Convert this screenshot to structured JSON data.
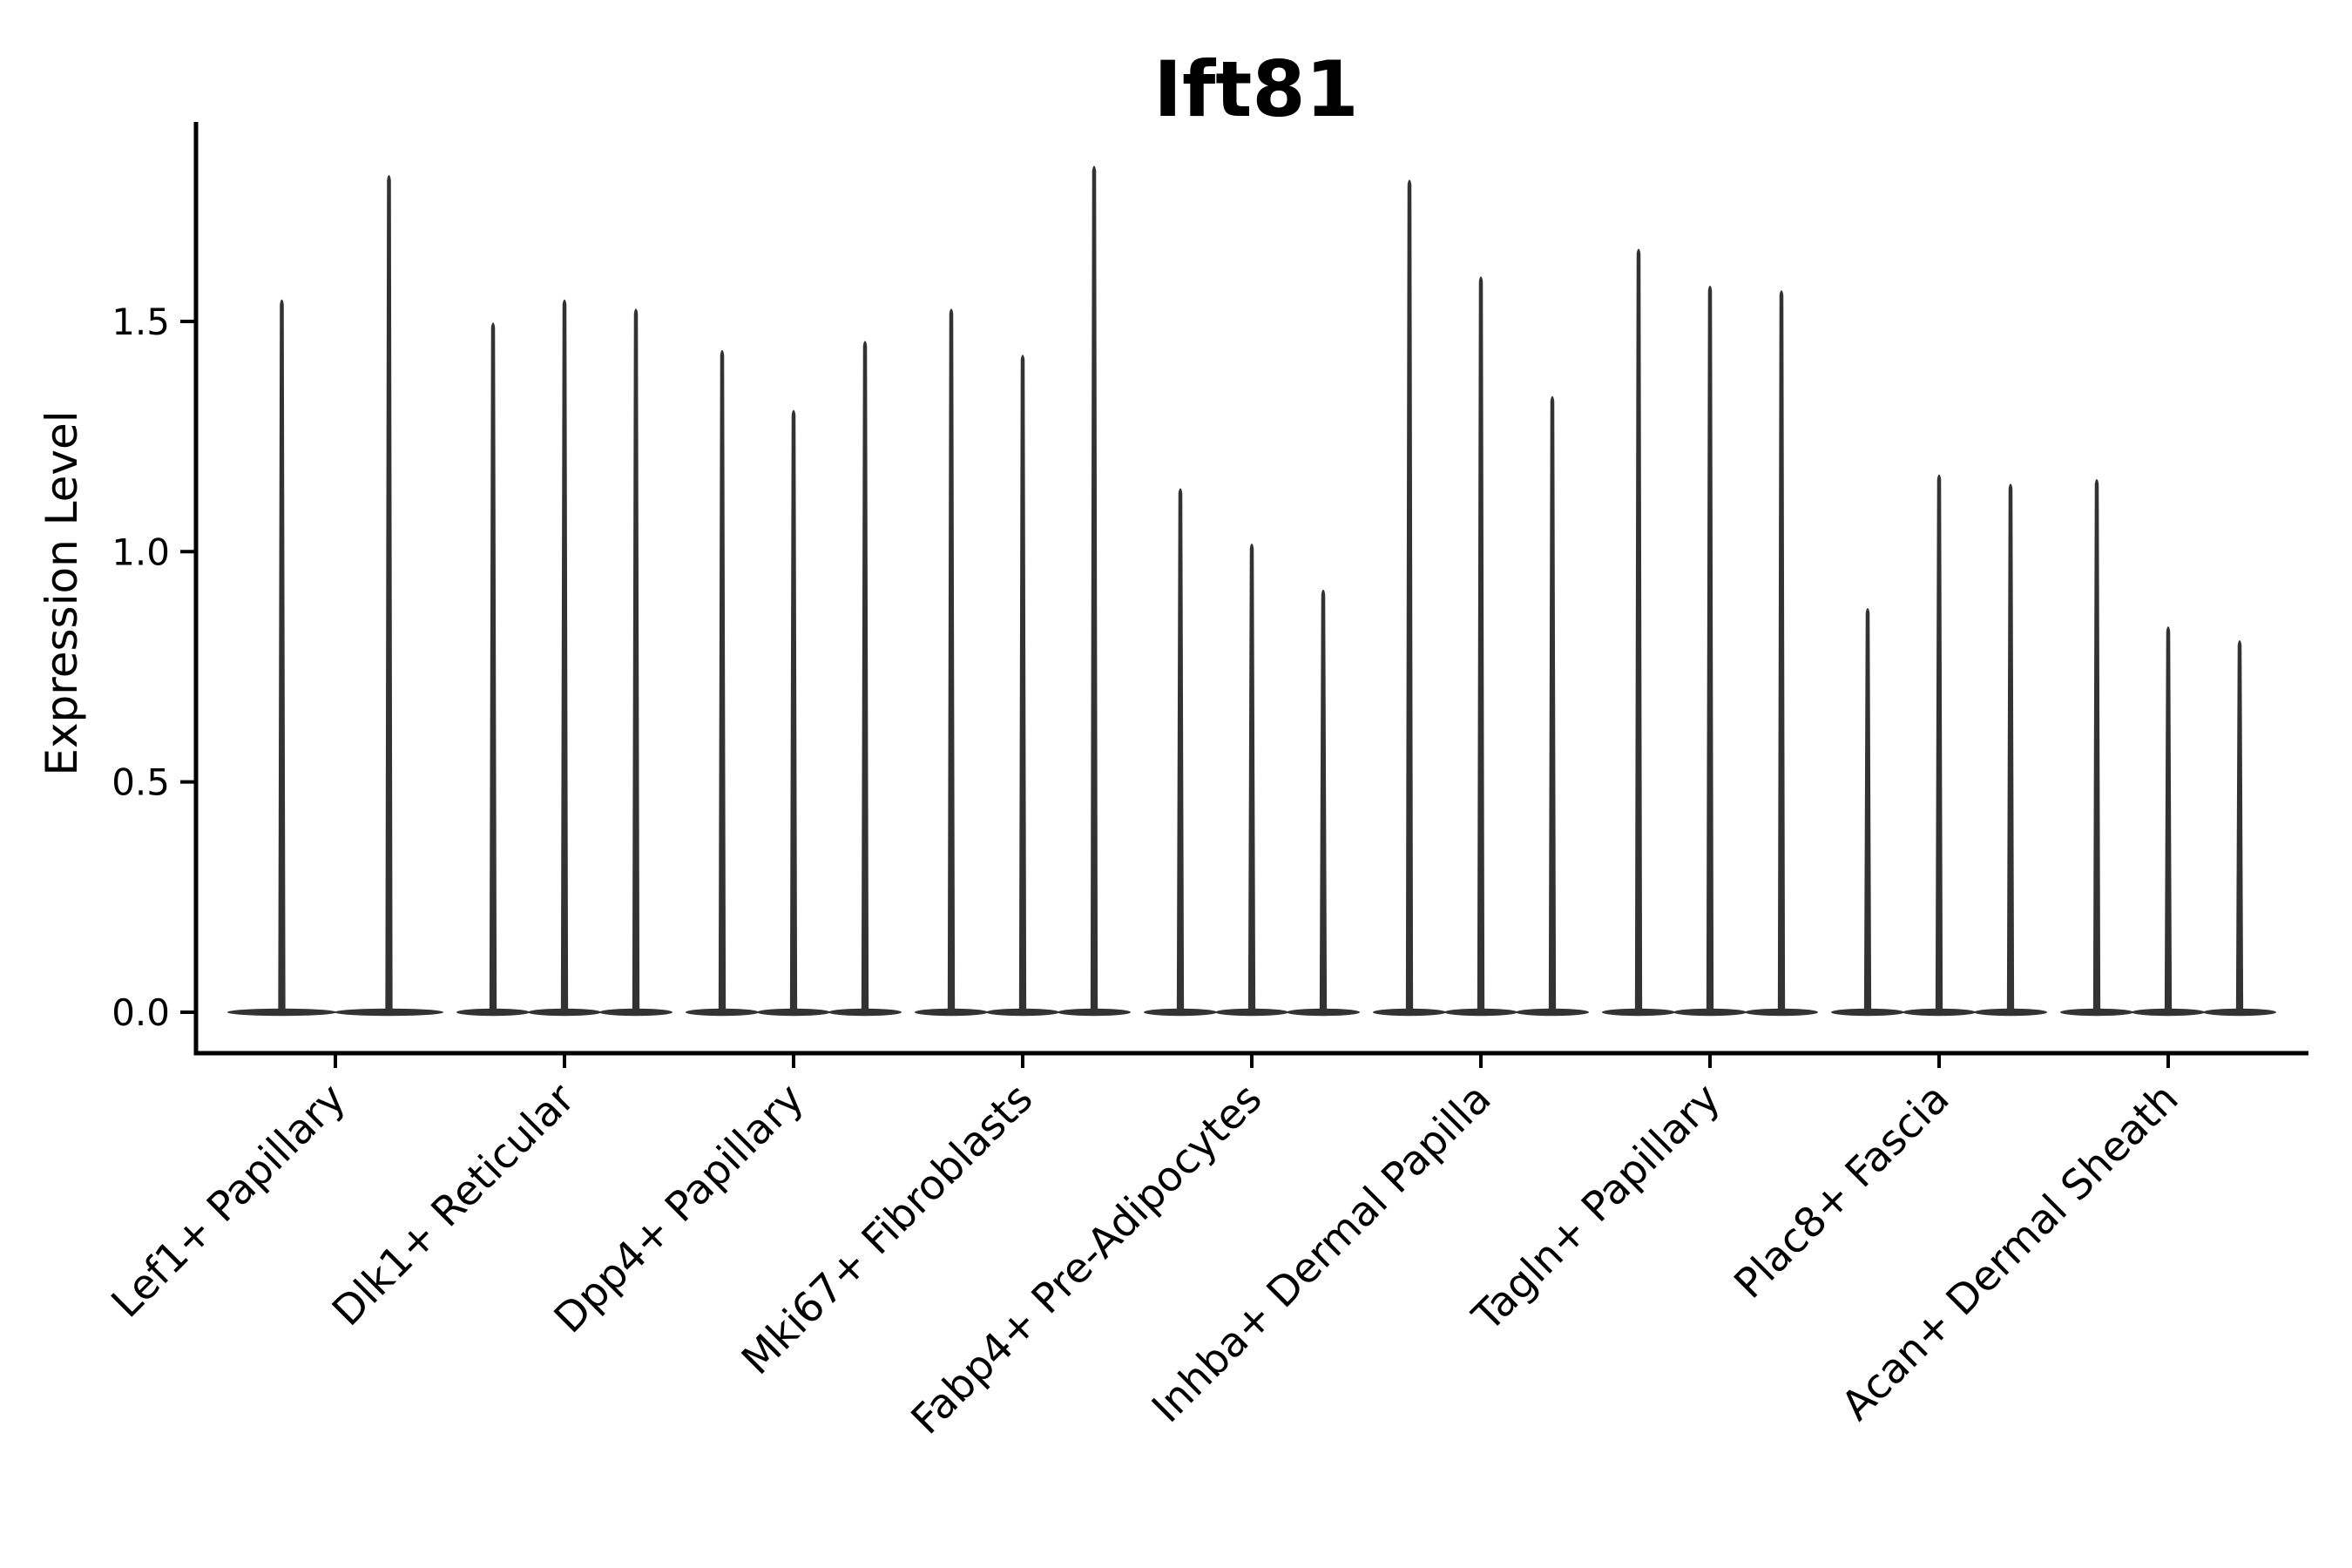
{
  "figure": {
    "title": "Ift81",
    "ylabel": "Expression Level"
  },
  "chart_data": {
    "type": "violin",
    "title": "Ift81",
    "xlabel": "",
    "ylabel": "Expression Level",
    "ylim": [
      0.0,
      1.93
    ],
    "yticks": [
      0.0,
      0.5,
      1.0,
      1.5
    ],
    "ytick_labels": [
      "0.0",
      "0.5",
      "1.0",
      "1.5"
    ],
    "grid": false,
    "legend_position": "none",
    "violin_color": "#333333",
    "background_color": "#ffffff",
    "categories": [
      "Lef1+ Papillary",
      "Dlk1+ Reticular",
      "Dpp4+ Papillary",
      "Mki67+ Fibroblasts",
      "Fabp4+ Pre-Adipocytes",
      "Inhba+ Dermal Papilla",
      "Tagln+ Papillary",
      "Plac8+ Fascia",
      "Acan+ Dermal Sheath"
    ],
    "groups": [
      {
        "category": "Lef1+ Papillary",
        "violin_max_expression": [
          1.55,
          1.82
        ]
      },
      {
        "category": "Dlk1+ Reticular",
        "violin_max_expression": [
          1.5,
          1.55,
          1.53
        ]
      },
      {
        "category": "Dpp4+ Papillary",
        "violin_max_expression": [
          1.44,
          1.31,
          1.46
        ]
      },
      {
        "category": "Mki67+ Fibroblasts",
        "violin_max_expression": [
          1.53,
          1.43,
          1.84
        ]
      },
      {
        "category": "Fabp4+ Pre-Adipocytes",
        "violin_max_expression": [
          1.14,
          1.02,
          0.92
        ]
      },
      {
        "category": "Inhba+ Dermal Papilla",
        "violin_max_expression": [
          1.81,
          1.6,
          1.34
        ]
      },
      {
        "category": "Tagln+ Papillary",
        "violin_max_expression": [
          1.66,
          1.58,
          1.57
        ]
      },
      {
        "category": "Plac8+ Fascia",
        "violin_max_expression": [
          0.88,
          1.17,
          1.15
        ]
      },
      {
        "category": "Acan+ Dermal Sheath",
        "violin_max_expression": [
          1.16,
          0.84,
          0.81
        ]
      }
    ],
    "violin_shape_note": "each violin is a thin vertical spike from 0 to its max with a wide flat base at expression level 0"
  }
}
